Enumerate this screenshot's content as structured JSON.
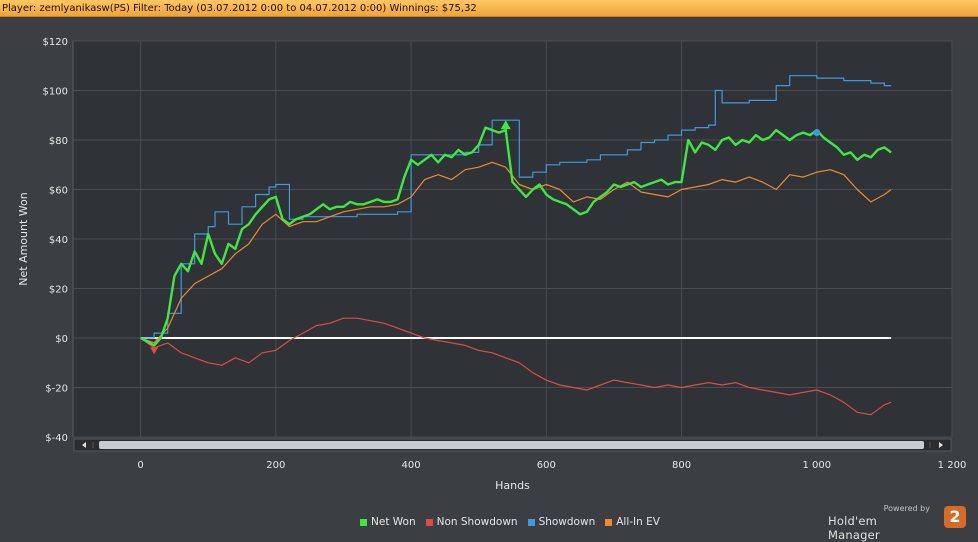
{
  "header": {
    "info": "Player: zemlyanikasw(PS) Filter: Today (03.07.2012 0:00 to 04.07.2012 0:00) Winnings: $75,32"
  },
  "chart_data": {
    "type": "line",
    "xlabel": "Hands",
    "ylabel": "Net Amount Won",
    "xlim": [
      -100,
      1200
    ],
    "ylim": [
      -40,
      120
    ],
    "x_ticks": [
      "0",
      "200",
      "400",
      "600",
      "800",
      "1 000",
      "1 200"
    ],
    "y_ticks": [
      "$120",
      "$100",
      "$80",
      "$60",
      "$40",
      "$20",
      "$0",
      "$-20",
      "$-40"
    ],
    "grid": true,
    "legend_position": "bottom",
    "background": "#2f3237",
    "series": [
      {
        "name": "Net Won",
        "color": "#3ee83e",
        "x": [
          0,
          20,
          30,
          40,
          50,
          60,
          70,
          80,
          90,
          100,
          110,
          120,
          130,
          140,
          150,
          160,
          170,
          180,
          190,
          200,
          210,
          220,
          230,
          240,
          250,
          260,
          270,
          280,
          290,
          300,
          310,
          320,
          330,
          340,
          350,
          360,
          370,
          380,
          390,
          400,
          410,
          420,
          430,
          440,
          450,
          460,
          470,
          480,
          490,
          500,
          510,
          520,
          530,
          540,
          550,
          560,
          570,
          580,
          590,
          600,
          610,
          620,
          630,
          640,
          650,
          660,
          670,
          680,
          690,
          700,
          710,
          720,
          730,
          740,
          750,
          760,
          770,
          780,
          790,
          800,
          810,
          820,
          830,
          840,
          850,
          860,
          870,
          880,
          890,
          900,
          910,
          920,
          930,
          940,
          950,
          960,
          970,
          980,
          990,
          1000,
          1010,
          1020,
          1030,
          1040,
          1050,
          1060,
          1070,
          1080,
          1090,
          1100,
          1110
        ],
        "values": [
          0,
          -3,
          0,
          8,
          25,
          30,
          27,
          35,
          30,
          42,
          34,
          30,
          38,
          36,
          44,
          46,
          50,
          53,
          56,
          57,
          48,
          46,
          48,
          49,
          50,
          52,
          54,
          52,
          53,
          53,
          55,
          54,
          54,
          55,
          56,
          55,
          55,
          56,
          65,
          72,
          70,
          72,
          74,
          71,
          74,
          73,
          76,
          74,
          75,
          78,
          85,
          84,
          83,
          84,
          63,
          60,
          57,
          60,
          62,
          58,
          56,
          55,
          54,
          52,
          50,
          51,
          55,
          57,
          59,
          62,
          61,
          62,
          63,
          61,
          62,
          63,
          64,
          62,
          63,
          63,
          80,
          75,
          79,
          78,
          76,
          80,
          81,
          78,
          80,
          79,
          82,
          80,
          81,
          84,
          82,
          80,
          82,
          83,
          82,
          84,
          81,
          79,
          77,
          74,
          75,
          72,
          74,
          73,
          76,
          77,
          75
        ]
      },
      {
        "name": "Non Showdown",
        "color": "#e04a42",
        "x": [
          0,
          20,
          40,
          60,
          80,
          100,
          120,
          140,
          160,
          180,
          200,
          220,
          240,
          260,
          280,
          300,
          320,
          340,
          360,
          380,
          400,
          420,
          440,
          460,
          480,
          500,
          520,
          540,
          560,
          580,
          600,
          620,
          640,
          660,
          680,
          700,
          720,
          740,
          760,
          780,
          800,
          820,
          840,
          860,
          880,
          900,
          920,
          940,
          960,
          980,
          1000,
          1020,
          1040,
          1060,
          1080,
          1100,
          1110
        ],
        "values": [
          0,
          -4,
          -2,
          -6,
          -8,
          -10,
          -11,
          -8,
          -10,
          -6,
          -5,
          -1,
          2,
          5,
          6,
          8,
          8,
          7,
          6,
          4,
          2,
          0,
          -1,
          -2,
          -3,
          -5,
          -6,
          -8,
          -10,
          -14,
          -17,
          -19,
          -20,
          -21,
          -19,
          -17,
          -18,
          -19,
          -20,
          -19,
          -20,
          -19,
          -18,
          -19,
          -18,
          -20,
          -21,
          -22,
          -23,
          -22,
          -21,
          -23,
          -26,
          -30,
          -31,
          -27,
          -26
        ]
      },
      {
        "name": "Showdown",
        "color": "#3c9adf",
        "step": true,
        "x": [
          0,
          20,
          40,
          60,
          80,
          100,
          110,
          130,
          150,
          170,
          190,
          200,
          220,
          240,
          260,
          280,
          300,
          320,
          340,
          360,
          380,
          400,
          420,
          440,
          460,
          480,
          500,
          520,
          540,
          560,
          580,
          600,
          620,
          640,
          660,
          680,
          700,
          720,
          740,
          760,
          780,
          800,
          820,
          840,
          850,
          860,
          880,
          900,
          920,
          940,
          960,
          980,
          1000,
          1020,
          1040,
          1060,
          1080,
          1100,
          1110
        ],
        "values": [
          0,
          2,
          10,
          30,
          42,
          45,
          51,
          46,
          53,
          58,
          61,
          62,
          48,
          49,
          49,
          49,
          49,
          50,
          50,
          50,
          51,
          74,
          74,
          74,
          74,
          75,
          78,
          88,
          88,
          65,
          67,
          70,
          71,
          71,
          72,
          74,
          74,
          76,
          79,
          80,
          82,
          84,
          85,
          86,
          100,
          95,
          95,
          96,
          96,
          102,
          106,
          106,
          105,
          105,
          104,
          104,
          103,
          102,
          102
        ]
      },
      {
        "name": "All-In EV",
        "color": "#ef8a2d",
        "x": [
          0,
          20,
          40,
          60,
          80,
          100,
          120,
          140,
          160,
          180,
          200,
          220,
          240,
          260,
          280,
          300,
          320,
          340,
          360,
          380,
          400,
          420,
          440,
          460,
          480,
          500,
          520,
          540,
          560,
          580,
          600,
          620,
          640,
          660,
          680,
          700,
          720,
          740,
          760,
          780,
          800,
          820,
          840,
          860,
          880,
          900,
          920,
          940,
          960,
          980,
          1000,
          1020,
          1040,
          1060,
          1080,
          1100,
          1110
        ],
        "values": [
          0,
          -2,
          4,
          16,
          22,
          25,
          28,
          34,
          38,
          46,
          50,
          45,
          47,
          47,
          49,
          51,
          52,
          53,
          53,
          54,
          57,
          64,
          66,
          64,
          68,
          69,
          71,
          69,
          62,
          60,
          62,
          60,
          55,
          57,
          56,
          60,
          63,
          59,
          58,
          57,
          60,
          61,
          62,
          64,
          63,
          65,
          63,
          60,
          66,
          65,
          67,
          68,
          66,
          60,
          55,
          58,
          60
        ]
      }
    ],
    "markers": [
      {
        "series": "Net Won",
        "x": 540,
        "y": 86,
        "shape": "triangle-up"
      },
      {
        "series": "Non Showdown",
        "x": 20,
        "y": -5,
        "shape": "triangle-down"
      },
      {
        "series": "Showdown",
        "x": 1000,
        "y": 83,
        "shape": "circle"
      }
    ],
    "zero_line": true
  },
  "legend": {
    "items": [
      {
        "label": "Net Won",
        "color": "#3ee83e"
      },
      {
        "label": "Non Showdown",
        "color": "#e04a42"
      },
      {
        "label": "Showdown",
        "color": "#3c9adf"
      },
      {
        "label": "All-In EV",
        "color": "#ef8a2d"
      }
    ]
  },
  "branding": {
    "powered": "Powered by",
    "name": "Hold'em Manager",
    "logo_text": "2",
    "logo_color": "#d86a24"
  }
}
